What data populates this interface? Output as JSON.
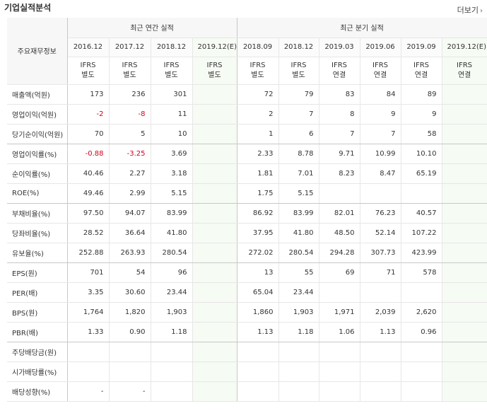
{
  "section_title": "기업실적분석",
  "more_label": "더보기",
  "more_icon": "chevron-right-icon",
  "header": {
    "left_label": "주요재무정보",
    "annual_group": "최근 연간 실적",
    "quarter_group": "최근 분기 실적",
    "annual_periods": [
      "2016.12",
      "2017.12",
      "2018.12",
      "2019.12(E)"
    ],
    "quarter_periods": [
      "2018.09",
      "2018.12",
      "2019.03",
      "2019.06",
      "2019.09",
      "2019.12(E)"
    ],
    "annual_ifrs": [
      [
        "IFRS",
        "별도"
      ],
      [
        "IFRS",
        "별도"
      ],
      [
        "IFRS",
        "별도"
      ],
      [
        "IFRS",
        "별도"
      ]
    ],
    "quarter_ifrs": [
      [
        "IFRS",
        "별도"
      ],
      [
        "IFRS",
        "별도"
      ],
      [
        "IFRS",
        "연결"
      ],
      [
        "IFRS",
        "연결"
      ],
      [
        "IFRS",
        "연결"
      ],
      [
        "IFRS",
        "연결"
      ]
    ]
  },
  "rows": [
    {
      "label": "매출액(억원)",
      "annual": [
        "173",
        "236",
        "301",
        ""
      ],
      "quarter": [
        "72",
        "79",
        "83",
        "84",
        "89",
        ""
      ]
    },
    {
      "label": "영업이익(억원)",
      "annual": [
        "-2",
        "-8",
        "11",
        ""
      ],
      "quarter": [
        "2",
        "7",
        "8",
        "9",
        "9",
        ""
      ]
    },
    {
      "label": "당기순이익(억원)",
      "annual": [
        "70",
        "5",
        "10",
        ""
      ],
      "quarter": [
        "1",
        "6",
        "7",
        "7",
        "58",
        ""
      ]
    },
    {
      "label": "영업이익률(%)",
      "annual": [
        "-0.88",
        "-3.25",
        "3.69",
        ""
      ],
      "quarter": [
        "2.33",
        "8.78",
        "9.71",
        "10.99",
        "10.10",
        ""
      ]
    },
    {
      "label": "순이익률(%)",
      "annual": [
        "40.46",
        "2.27",
        "3.18",
        ""
      ],
      "quarter": [
        "1.81",
        "7.01",
        "8.23",
        "8.47",
        "65.19",
        ""
      ]
    },
    {
      "label": "ROE(%)",
      "annual": [
        "49.46",
        "2.99",
        "5.15",
        ""
      ],
      "quarter": [
        "1.75",
        "5.15",
        "",
        "",
        "",
        ""
      ]
    },
    {
      "label": "부채비율(%)",
      "annual": [
        "97.50",
        "94.07",
        "83.99",
        ""
      ],
      "quarter": [
        "86.92",
        "83.99",
        "82.01",
        "76.23",
        "40.57",
        ""
      ]
    },
    {
      "label": "당좌비율(%)",
      "annual": [
        "28.52",
        "36.64",
        "41.80",
        ""
      ],
      "quarter": [
        "37.95",
        "41.80",
        "48.50",
        "52.14",
        "107.22",
        ""
      ]
    },
    {
      "label": "유보율(%)",
      "annual": [
        "252.88",
        "263.93",
        "280.54",
        ""
      ],
      "quarter": [
        "272.02",
        "280.54",
        "294.28",
        "307.73",
        "423.99",
        ""
      ]
    },
    {
      "label": "EPS(원)",
      "annual": [
        "701",
        "54",
        "96",
        ""
      ],
      "quarter": [
        "13",
        "55",
        "69",
        "71",
        "578",
        ""
      ]
    },
    {
      "label": "PER(배)",
      "annual": [
        "3.35",
        "30.60",
        "23.44",
        ""
      ],
      "quarter": [
        "65.04",
        "23.44",
        "",
        "",
        "",
        ""
      ]
    },
    {
      "label": "BPS(원)",
      "annual": [
        "1,764",
        "1,820",
        "1,903",
        ""
      ],
      "quarter": [
        "1,860",
        "1,903",
        "1,971",
        "2,039",
        "2,620",
        ""
      ]
    },
    {
      "label": "PBR(배)",
      "annual": [
        "1.33",
        "0.90",
        "1.18",
        ""
      ],
      "quarter": [
        "1.13",
        "1.18",
        "1.06",
        "1.13",
        "0.96",
        ""
      ]
    },
    {
      "label": "주당배당금(원)",
      "annual": [
        "",
        "",
        "",
        ""
      ],
      "quarter": [
        "",
        "",
        "",
        "",
        "",
        ""
      ]
    },
    {
      "label": "시가배당률(%)",
      "annual": [
        "",
        "",
        "",
        ""
      ],
      "quarter": [
        "",
        "",
        "",
        "",
        "",
        ""
      ]
    },
    {
      "label": "배당성향(%)",
      "annual": [
        "-",
        "-",
        "",
        ""
      ],
      "quarter": [
        "",
        "",
        "",
        "",
        "",
        ""
      ]
    }
  ],
  "colors": {
    "negative": "#d0021b",
    "ifrs": "#dc4a1a",
    "estimate_bg": "#f6fbf4"
  }
}
